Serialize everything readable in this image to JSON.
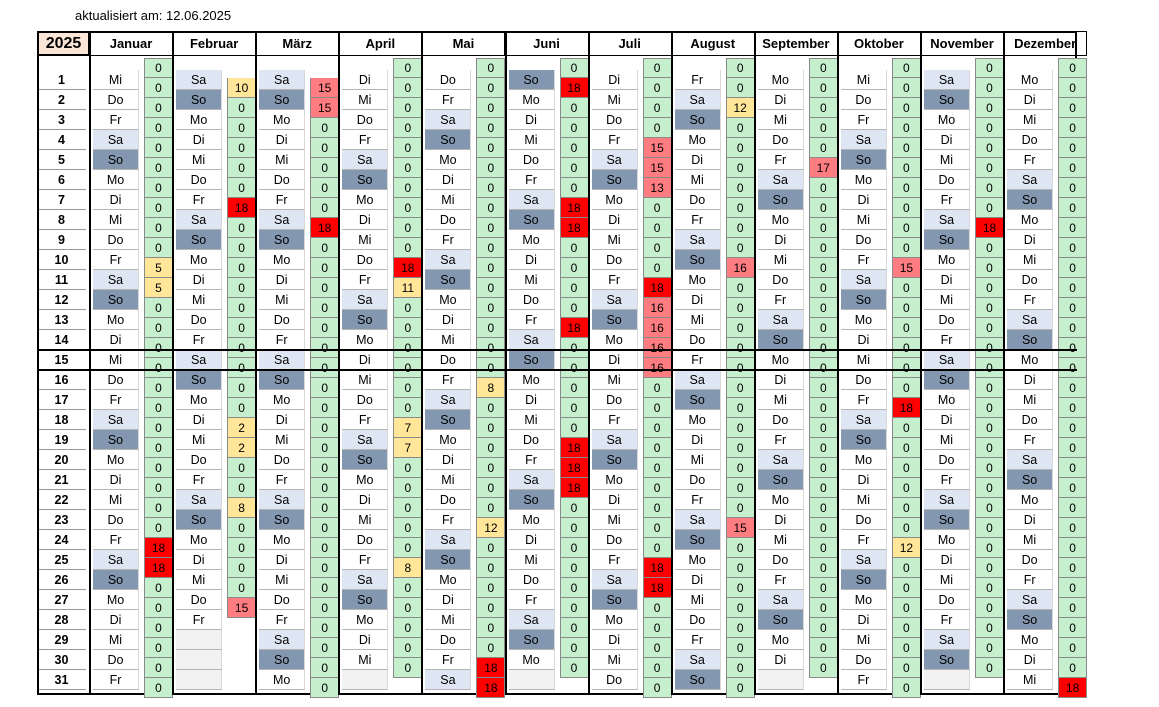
{
  "updated_label": "aktualisiert am:",
  "updated_date": "12.06.2025",
  "year": "2025",
  "months": [
    "Januar",
    "Februar",
    "März",
    "April",
    "Mai",
    "Juni",
    "Juli",
    "August",
    "September",
    "Oktober",
    "November",
    "Dezember"
  ],
  "month_start_offsets": [
    2,
    5,
    5,
    1,
    3,
    6,
    1,
    4,
    0,
    2,
    5,
    0
  ],
  "month_lengths": [
    31,
    28,
    31,
    30,
    31,
    30,
    31,
    31,
    30,
    31,
    30,
    31
  ],
  "weekday_abbr": [
    "Mo",
    "Di",
    "Mi",
    "Do",
    "Fr",
    "Sa",
    "So"
  ],
  "start_weekday_index": [
    2,
    5,
    5,
    1,
    3,
    6,
    1,
    4,
    0,
    2,
    5,
    0
  ],
  "values": [
    [
      "0",
      "0",
      "0",
      "0",
      "0",
      "0",
      "0",
      "0",
      "0",
      "5",
      "5",
      "0",
      "0",
      "0",
      "0",
      "0",
      "0",
      "0",
      "0",
      "0",
      "0",
      "0",
      "0",
      "18",
      "18",
      "0",
      "0",
      "0",
      "0",
      "0",
      "0"
    ],
    [
      "10",
      "0",
      "0",
      "0",
      "0",
      "0",
      "18",
      "0",
      "0",
      "0",
      "0",
      "0",
      "0",
      "0",
      "0",
      "0",
      "0",
      "2",
      "2",
      "0",
      "0",
      "8",
      "0",
      "0",
      "0",
      "0",
      "15",
      ""
    ],
    [
      "15",
      "15",
      "0",
      "0",
      "0",
      "0",
      "0",
      "18",
      "0",
      "0",
      "0",
      "0",
      "0",
      "0",
      "0",
      "0",
      "0",
      "0",
      "0",
      "0",
      "0",
      "0",
      "0",
      "0",
      "0",
      "0",
      "0",
      "0",
      "0",
      "0",
      "0"
    ],
    [
      "0",
      "0",
      "0",
      "0",
      "0",
      "0",
      "0",
      "0",
      "0",
      "18",
      "11",
      "0",
      "0",
      "0",
      "0",
      "0",
      "0",
      "7",
      "7",
      "0",
      "0",
      "0",
      "0",
      "0",
      "8",
      "0",
      "0",
      "0",
      "0",
      "0"
    ],
    [
      "0",
      "0",
      "0",
      "0",
      "0",
      "0",
      "0",
      "0",
      "0",
      "0",
      "0",
      "0",
      "0",
      "0",
      "0",
      "8",
      "0",
      "0",
      "0",
      "0",
      "0",
      "0",
      "12",
      "0",
      "0",
      "0",
      "0",
      "0",
      "0",
      "18",
      "18"
    ],
    [
      "18",
      "0",
      "0",
      "0",
      "0",
      "0",
      "18",
      "18",
      "0",
      "0",
      "0",
      "0",
      "18",
      "0",
      "0",
      "0",
      "0",
      "0",
      "18",
      "18",
      "18",
      "0",
      "0",
      "0",
      "0",
      "0",
      "0",
      "0",
      "0",
      "0"
    ],
    [
      "0",
      "0",
      "0",
      "15",
      "15",
      "13",
      "0",
      "0",
      "0",
      "0",
      "18",
      "16",
      "16",
      "16",
      "16",
      "0",
      "0",
      "0",
      "0",
      "0",
      "0",
      "0",
      "0",
      "0",
      "18",
      "18",
      "0",
      "0",
      "0",
      "0",
      "0"
    ],
    [
      "0",
      "12",
      "0",
      "0",
      "0",
      "0",
      "0",
      "0",
      "0",
      "16",
      "0",
      "0",
      "0",
      "0",
      "0",
      "0",
      "0",
      "0",
      "0",
      "0",
      "0",
      "0",
      "15",
      "0",
      "0",
      "0",
      "0",
      "0",
      "0",
      "0",
      "0"
    ],
    [
      "0",
      "0",
      "0",
      "0",
      "17",
      "0",
      "0",
      "0",
      "0",
      "0",
      "0",
      "0",
      "0",
      "0",
      "0",
      "0",
      "0",
      "0",
      "0",
      "0",
      "0",
      "0",
      "0",
      "0",
      "0",
      "0",
      "0",
      "0",
      "0",
      "0"
    ],
    [
      "0",
      "0",
      "0",
      "0",
      "0",
      "0",
      "0",
      "0",
      "0",
      "15",
      "0",
      "0",
      "0",
      "0",
      "0",
      "0",
      "18",
      "0",
      "0",
      "0",
      "0",
      "0",
      "0",
      "12",
      "0",
      "0",
      "0",
      "0",
      "0",
      "0",
      "0"
    ],
    [
      "0",
      "0",
      "0",
      "0",
      "0",
      "0",
      "0",
      "18",
      "0",
      "0",
      "0",
      "0",
      "0",
      "0",
      "0",
      "0",
      "0",
      "0",
      "0",
      "0",
      "0",
      "0",
      "0",
      "0",
      "0",
      "0",
      "0",
      "0",
      "0",
      "0"
    ],
    [
      "0",
      "0",
      "0",
      "0",
      "0",
      "0",
      "0",
      "0",
      "0",
      "0",
      "0",
      "0",
      "0",
      "0",
      "0",
      "0",
      "0",
      "0",
      "0",
      "0",
      "0",
      "0",
      "0",
      "0",
      "0",
      "0",
      "0",
      "0",
      "0",
      "0",
      "18"
    ]
  ],
  "extra_top": [
    "0",
    "",
    "",
    "0",
    "0",
    "0",
    "0",
    "0",
    "0",
    "0",
    "0",
    "0"
  ],
  "extra_top_colors": [
    "green",
    "",
    "",
    "green",
    "green",
    "green",
    "green",
    "green",
    "green",
    "green",
    "green",
    "green"
  ],
  "colors": {
    "zero": "#c6efce",
    "low": "#ffe699",
    "mid": "#ff7c80",
    "high": "#ff0000",
    "sat": "#dde6f2",
    "sun": "#8497b0"
  }
}
